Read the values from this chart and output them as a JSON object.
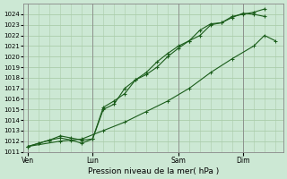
{
  "xlabel": "Pression niveau de la mer( hPa )",
  "ylim": [
    1011,
    1025
  ],
  "yticks": [
    1011,
    1012,
    1013,
    1014,
    1015,
    1016,
    1017,
    1018,
    1019,
    1020,
    1021,
    1022,
    1023,
    1024
  ],
  "bg_color": "#cce8d4",
  "grid_color": "#aaccaa",
  "line_color": "#1a5c1a",
  "xtick_labels": [
    "Ven",
    "Lun",
    "Sam",
    "Dim"
  ],
  "xtick_positions": [
    0,
    72,
    168,
    240
  ],
  "xlim": [
    -5,
    285
  ],
  "line1_x": [
    0,
    12,
    24,
    36,
    48,
    60,
    72,
    84,
    96,
    108,
    120,
    132,
    144,
    156,
    168,
    180,
    192,
    204,
    216,
    228,
    240,
    252,
    264
  ],
  "line1_y": [
    1011.5,
    1011.8,
    1012.1,
    1012.3,
    1012.1,
    1011.8,
    1012.2,
    1015.2,
    1015.8,
    1016.5,
    1017.8,
    1018.5,
    1019.5,
    1020.3,
    1021.0,
    1021.5,
    1022.0,
    1023.0,
    1023.2,
    1023.8,
    1024.0,
    1024.2,
    1024.5
  ],
  "line2_x": [
    0,
    12,
    24,
    36,
    48,
    60,
    72,
    84,
    96,
    108,
    120,
    132,
    144,
    156,
    168,
    180,
    192,
    204,
    216,
    228,
    240,
    252,
    264
  ],
  "line2_y": [
    1011.5,
    1011.8,
    1012.1,
    1012.5,
    1012.3,
    1012.1,
    1012.2,
    1015.0,
    1015.5,
    1017.0,
    1017.8,
    1018.3,
    1019.0,
    1020.0,
    1020.8,
    1021.5,
    1022.5,
    1023.1,
    1023.2,
    1023.7,
    1024.1,
    1024.0,
    1023.8
  ],
  "line3_x": [
    0,
    36,
    60,
    84,
    108,
    132,
    156,
    180,
    204,
    228,
    252,
    264,
    276
  ],
  "line3_y": [
    1011.5,
    1012.0,
    1012.2,
    1013.0,
    1013.8,
    1014.8,
    1015.8,
    1017.0,
    1018.5,
    1019.8,
    1021.0,
    1022.0,
    1021.5
  ],
  "line4_x": [
    264,
    276
  ],
  "line4_y": [
    1024.5,
    1023.0
  ],
  "line5_x": [
    264,
    276
  ],
  "line5_y": [
    1023.8,
    1022.0
  ]
}
